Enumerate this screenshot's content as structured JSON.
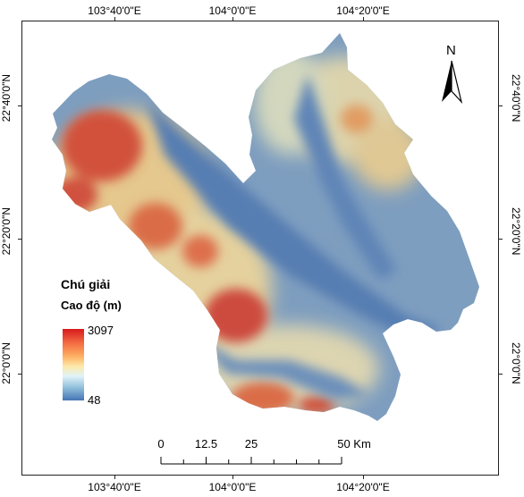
{
  "map": {
    "lon_ticks": [
      "103°40'0\"E",
      "104°0'0\"E",
      "104°20'0\"E"
    ],
    "lat_ticks": [
      "22°40'0\"N",
      "22°20'0\"N",
      "22°0'0\"N"
    ],
    "north_label": "N",
    "legend": {
      "title": "Chú giải",
      "subtitle": "Cao độ (m)",
      "max": "3097",
      "min": "48",
      "ramp_colors": [
        "#d7191c",
        "#fdae61",
        "#fee8a8",
        "#91bfdb",
        "#4575b4"
      ]
    },
    "scale_bar": {
      "labels": [
        "0",
        "12.5",
        "25",
        "50 Km"
      ],
      "values": [
        0,
        12.5,
        25,
        50
      ]
    }
  }
}
